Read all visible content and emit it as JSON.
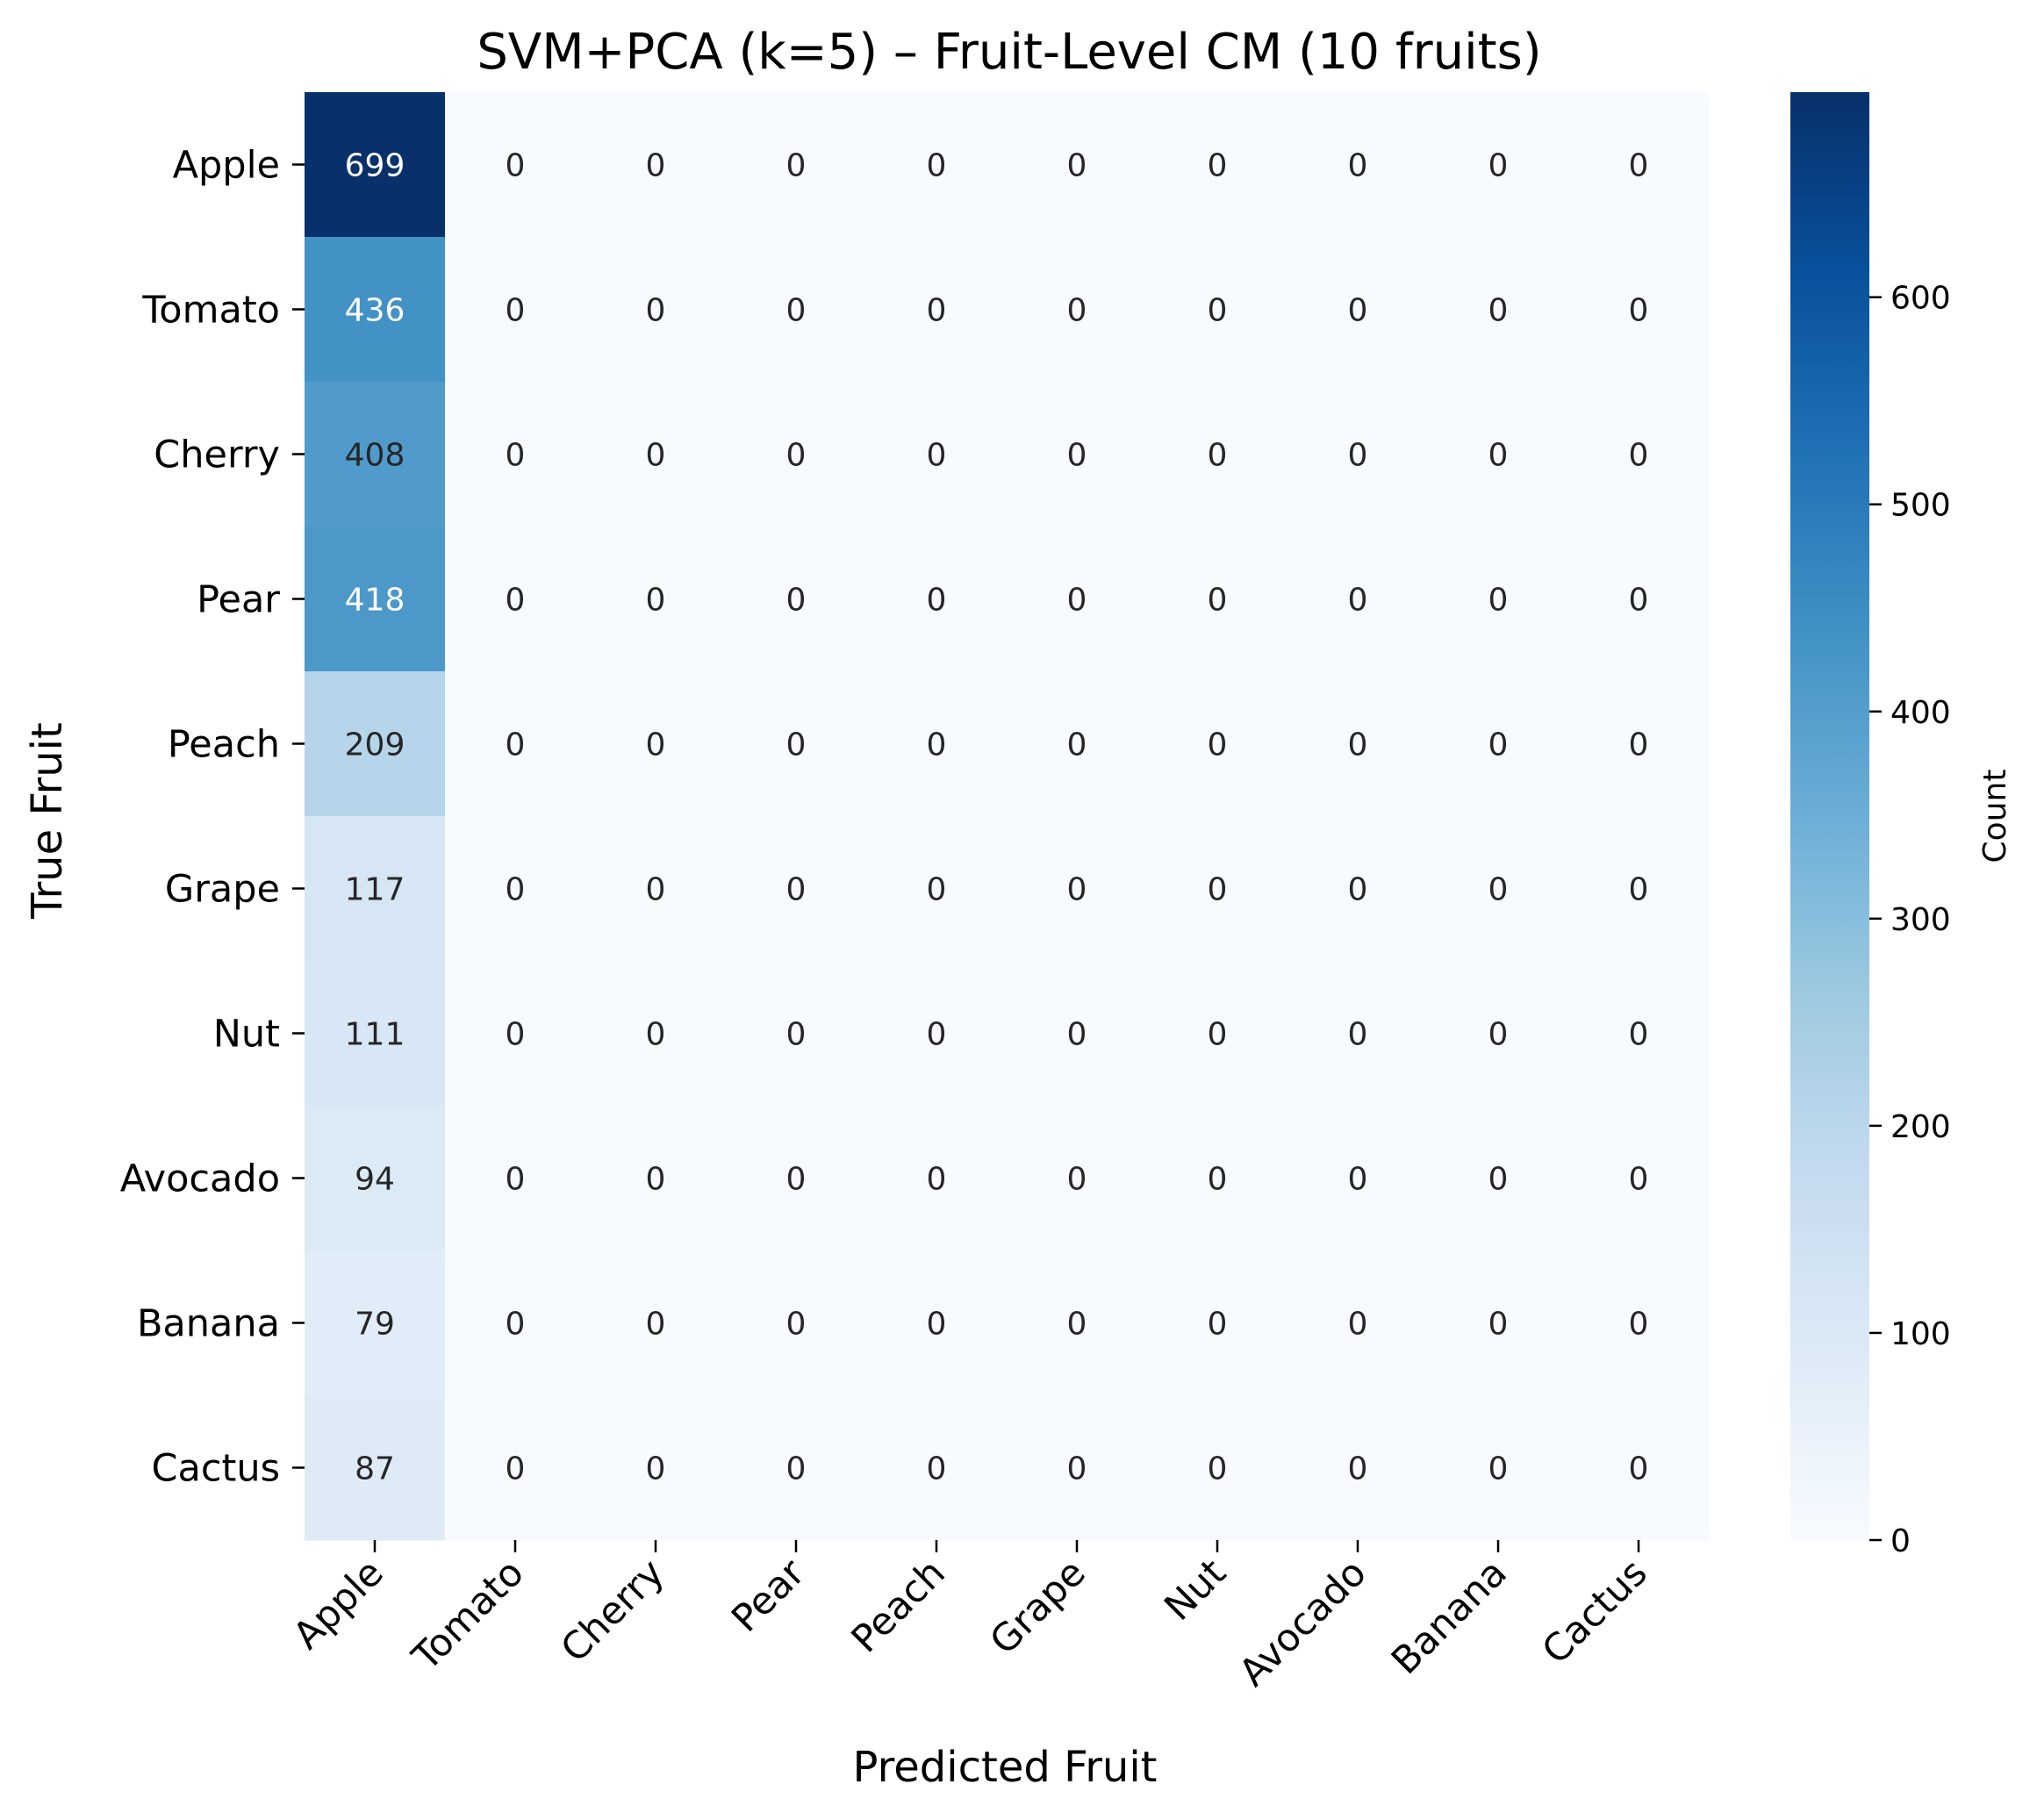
{
  "chart_data": {
    "type": "heatmap",
    "title": "SVM+PCA (k=5) – Fruit-Level CM (10 fruits)",
    "xlabel": "Predicted Fruit",
    "ylabel": "True Fruit",
    "x_categories": [
      "Apple",
      "Tomato",
      "Cherry",
      "Pear",
      "Peach",
      "Grape",
      "Nut",
      "Avocado",
      "Banana",
      "Cactus"
    ],
    "y_categories": [
      "Apple",
      "Tomato",
      "Cherry",
      "Pear",
      "Peach",
      "Grape",
      "Nut",
      "Avocado",
      "Banana",
      "Cactus"
    ],
    "values": [
      [
        699,
        0,
        0,
        0,
        0,
        0,
        0,
        0,
        0,
        0
      ],
      [
        436,
        0,
        0,
        0,
        0,
        0,
        0,
        0,
        0,
        0
      ],
      [
        408,
        0,
        0,
        0,
        0,
        0,
        0,
        0,
        0,
        0
      ],
      [
        418,
        0,
        0,
        0,
        0,
        0,
        0,
        0,
        0,
        0
      ],
      [
        209,
        0,
        0,
        0,
        0,
        0,
        0,
        0,
        0,
        0
      ],
      [
        117,
        0,
        0,
        0,
        0,
        0,
        0,
        0,
        0,
        0
      ],
      [
        111,
        0,
        0,
        0,
        0,
        0,
        0,
        0,
        0,
        0
      ],
      [
        94,
        0,
        0,
        0,
        0,
        0,
        0,
        0,
        0,
        0
      ],
      [
        79,
        0,
        0,
        0,
        0,
        0,
        0,
        0,
        0,
        0
      ],
      [
        87,
        0,
        0,
        0,
        0,
        0,
        0,
        0,
        0,
        0
      ]
    ],
    "colorbar": {
      "label": "Count",
      "range": [
        0,
        699
      ],
      "ticks": [
        0,
        100,
        200,
        300,
        400,
        500,
        600
      ],
      "colormap": "Blues"
    },
    "grid": false,
    "colors": {
      "low": "#f7fbff",
      "high": "#08306b",
      "text_dark": "#262626",
      "text_light": "#ffffff"
    }
  }
}
